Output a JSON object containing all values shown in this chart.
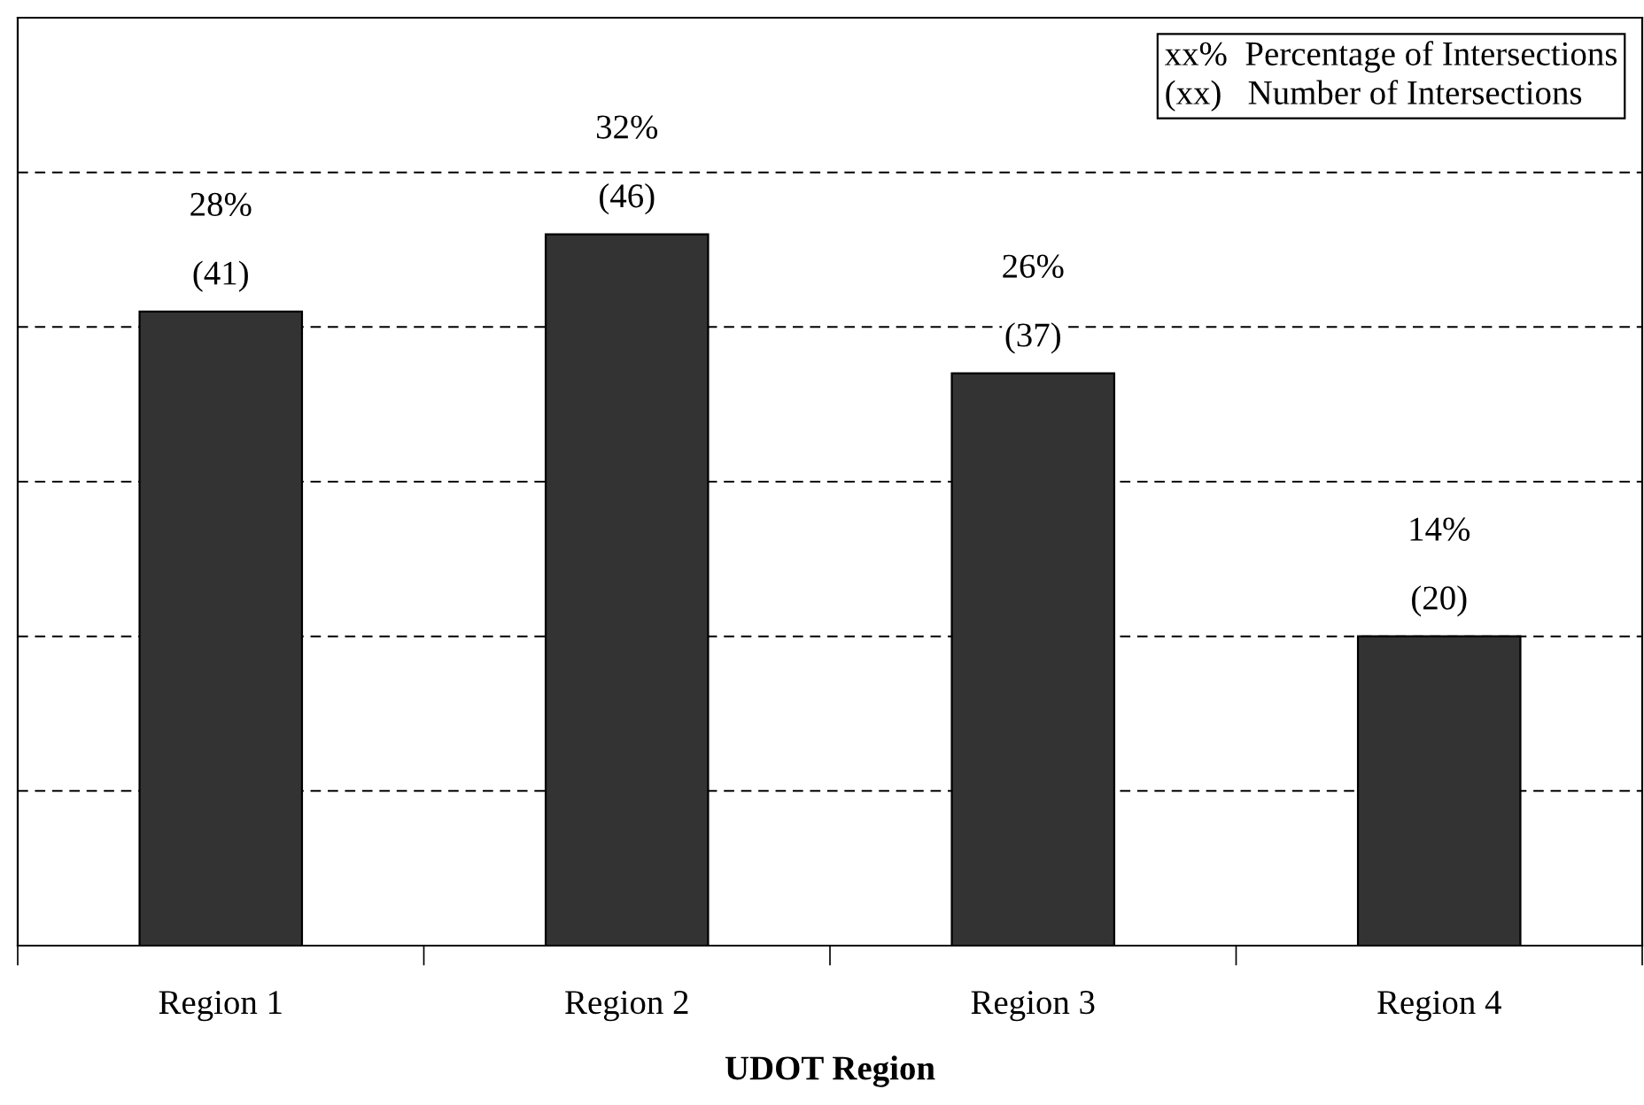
{
  "chart_data": {
    "type": "bar",
    "xlabel": "UDOT Region",
    "categories": [
      "Region 1",
      "Region 2",
      "Region 3",
      "Region 4"
    ],
    "values": [
      41,
      46,
      37,
      20
    ],
    "color": "#333333",
    "value_labels": [
      "(41)",
      "(46)",
      "(37)",
      "(20)"
    ],
    "annotations": [
      "28%",
      "32%",
      "26%",
      "14%",
      "xx%  Percentage of Intersections",
      "(xx)   Number of Intersections"
    ],
    "ylim": [
      0,
      60
    ],
    "yticks": [
      {
        "value": 10,
        "label": null
      },
      {
        "value": 20,
        "label": null
      },
      {
        "value": 30,
        "label": null
      },
      {
        "value": 40,
        "label": null
      },
      {
        "value": 50,
        "label": null
      }
    ],
    "grid": "y",
    "tick_labels": "x"
  }
}
